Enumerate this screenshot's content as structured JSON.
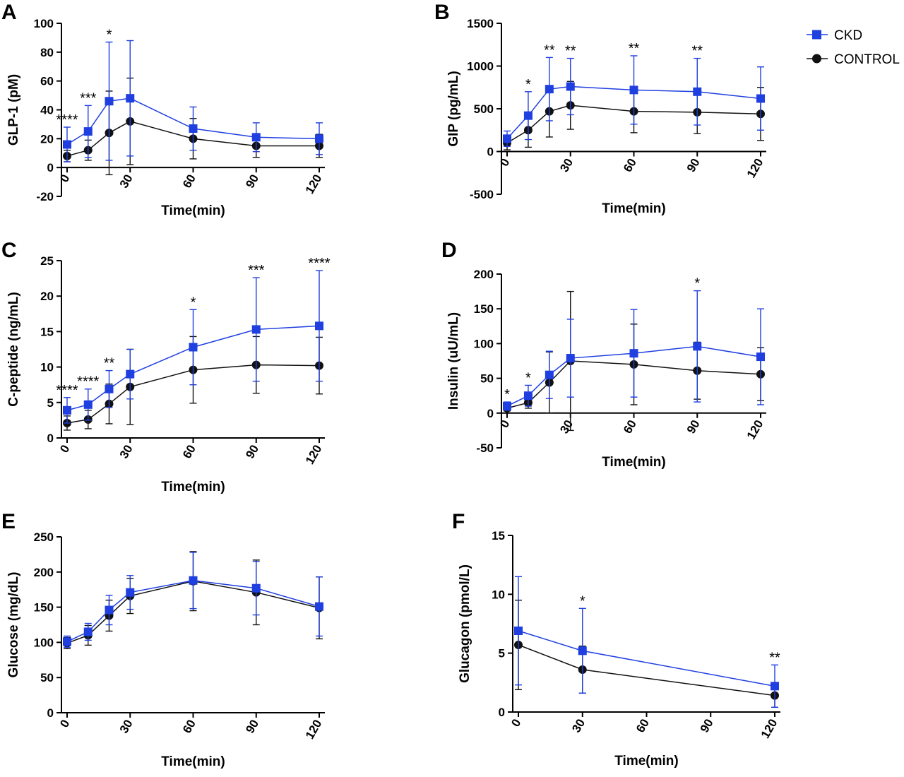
{
  "colors": {
    "CKD": "#1f3fe0",
    "CONTROL": "#111111",
    "axis": "#000000"
  },
  "legend": {
    "items": [
      {
        "label": "CKD",
        "marker": "square"
      },
      {
        "label": "CONTROL",
        "marker": "circle"
      }
    ]
  },
  "chart_data": [
    {
      "panel": "A",
      "type": "line",
      "xlabel": "Time(min)",
      "ylabel": "GLP-1 (pM)",
      "xticks": [
        0,
        30,
        60,
        90,
        120
      ],
      "yticks": [
        -20,
        0,
        20,
        40,
        60,
        80,
        100
      ],
      "xlim": [
        0,
        120
      ],
      "ylim": [
        -20,
        100
      ],
      "series": [
        {
          "name": "CKD",
          "x": [
            0,
            10,
            20,
            30,
            60,
            90,
            120
          ],
          "y": [
            16,
            25,
            46,
            48,
            27,
            21,
            20
          ],
          "err": [
            12,
            18,
            41,
            40,
            15,
            10,
            11
          ]
        },
        {
          "name": "CONTROL",
          "x": [
            0,
            10,
            20,
            30,
            60,
            90,
            120
          ],
          "y": [
            8,
            12,
            24,
            32,
            20,
            15,
            15
          ],
          "err": [
            4,
            7,
            29,
            30,
            14,
            8,
            8
          ]
        }
      ],
      "sig": [
        {
          "x": 0,
          "text": "****"
        },
        {
          "x": 10,
          "text": "***"
        },
        {
          "x": 20,
          "text": "*"
        }
      ]
    },
    {
      "panel": "B",
      "type": "line",
      "xlabel": "Time(min)",
      "ylabel": "GIP (pg/mL)",
      "xticks": [
        0,
        30,
        60,
        90,
        120
      ],
      "yticks": [
        -500,
        0,
        500,
        1000,
        1500
      ],
      "xlim": [
        0,
        120
      ],
      "ylim": [
        -500,
        1500
      ],
      "series": [
        {
          "name": "CKD",
          "x": [
            0,
            10,
            20,
            30,
            60,
            90,
            120
          ],
          "y": [
            150,
            420,
            730,
            760,
            720,
            700,
            620
          ],
          "err": [
            90,
            280,
            370,
            330,
            400,
            390,
            370
          ]
        },
        {
          "name": "CONTROL",
          "x": [
            0,
            10,
            20,
            30,
            60,
            90,
            120
          ],
          "y": [
            100,
            250,
            470,
            540,
            470,
            460,
            440
          ],
          "err": [
            80,
            200,
            300,
            280,
            250,
            250,
            310
          ]
        }
      ],
      "sig": [
        {
          "x": 10,
          "text": "*"
        },
        {
          "x": 20,
          "text": "**"
        },
        {
          "x": 30,
          "text": "**"
        },
        {
          "x": 60,
          "text": "**"
        },
        {
          "x": 90,
          "text": "**"
        }
      ]
    },
    {
      "panel": "C",
      "type": "line",
      "xlabel": "Time(min)",
      "ylabel": "C-peptide (ng/mL)",
      "xticks": [
        0,
        30,
        60,
        90,
        120
      ],
      "yticks": [
        0,
        5,
        10,
        15,
        20,
        25
      ],
      "xlim": [
        0,
        120
      ],
      "ylim": [
        0,
        25
      ],
      "series": [
        {
          "name": "CKD",
          "x": [
            0,
            10,
            20,
            30,
            60,
            90,
            120
          ],
          "y": [
            3.9,
            4.7,
            6.9,
            9.0,
            12.8,
            15.3,
            15.8
          ],
          "err": [
            1.8,
            2.2,
            2.6,
            3.5,
            5.3,
            7.3,
            7.8
          ]
        },
        {
          "name": "CONTROL",
          "x": [
            0,
            10,
            20,
            30,
            60,
            90,
            120
          ],
          "y": [
            2.1,
            2.6,
            4.8,
            7.2,
            9.6,
            10.3,
            10.2
          ],
          "err": [
            1.0,
            1.3,
            2.8,
            5.3,
            4.7,
            4.0,
            4.0
          ]
        }
      ],
      "sig": [
        {
          "x": 0,
          "text": "****"
        },
        {
          "x": 10,
          "text": "****"
        },
        {
          "x": 20,
          "text": "**"
        },
        {
          "x": 60,
          "text": "*"
        },
        {
          "x": 90,
          "text": "***"
        },
        {
          "x": 120,
          "text": "****"
        }
      ]
    },
    {
      "panel": "D",
      "type": "line",
      "xlabel": "Time(min)",
      "ylabel": "Insulin (uU/mL)",
      "xticks": [
        0,
        30,
        60,
        90,
        120
      ],
      "yticks": [
        -50,
        0,
        50,
        100,
        150,
        200
      ],
      "xlim": [
        0,
        120
      ],
      "ylim": [
        -50,
        200
      ],
      "series": [
        {
          "name": "CKD",
          "x": [
            0,
            10,
            20,
            30,
            60,
            90,
            120
          ],
          "y": [
            10,
            25,
            55,
            79,
            86,
            96,
            81
          ],
          "err": [
            6,
            15,
            34,
            56,
            63,
            80,
            69
          ]
        },
        {
          "name": "CONTROL",
          "x": [
            0,
            10,
            20,
            30,
            60,
            90,
            120
          ],
          "y": [
            7,
            15,
            44,
            75,
            70,
            61,
            56
          ],
          "err": [
            4,
            8,
            44,
            100,
            58,
            41,
            38
          ]
        }
      ],
      "sig": [
        {
          "x": 0,
          "text": "*"
        },
        {
          "x": 10,
          "text": "*"
        },
        {
          "x": 90,
          "text": "*"
        }
      ]
    },
    {
      "panel": "E",
      "type": "line",
      "xlabel": "Time(min)",
      "ylabel": "Glucose (mg/dL)",
      "xticks": [
        0,
        30,
        60,
        90,
        120
      ],
      "yticks": [
        0,
        50,
        100,
        150,
        200,
        250
      ],
      "xlim": [
        0,
        120
      ],
      "ylim": [
        0,
        250
      ],
      "series": [
        {
          "name": "CKD",
          "x": [
            0,
            10,
            20,
            30,
            60,
            90,
            120
          ],
          "y": [
            101,
            115,
            146,
            171,
            188,
            177,
            151
          ],
          "err": [
            8,
            12,
            21,
            24,
            40,
            38,
            42
          ]
        },
        {
          "name": "CONTROL",
          "x": [
            0,
            10,
            20,
            30,
            60,
            90,
            120
          ],
          "y": [
            99,
            110,
            138,
            166,
            187,
            171,
            149
          ],
          "err": [
            8,
            14,
            22,
            25,
            42,
            46,
            44
          ]
        }
      ],
      "sig": []
    },
    {
      "panel": "F",
      "type": "line",
      "xlabel": "Time(min)",
      "ylabel": "Glucagon (pmol/L)",
      "xticks": [
        0,
        30,
        60,
        90,
        120
      ],
      "yticks": [
        0,
        5,
        10,
        15
      ],
      "xlim": [
        0,
        120
      ],
      "ylim": [
        0,
        15
      ],
      "series": [
        {
          "name": "CKD",
          "x": [
            0,
            30,
            120
          ],
          "y": [
            6.9,
            5.2,
            2.2
          ],
          "err": [
            4.6,
            3.6,
            1.8
          ]
        },
        {
          "name": "CONTROL",
          "x": [
            0,
            30,
            120
          ],
          "y": [
            5.7,
            3.6,
            1.4
          ],
          "err": [
            3.8,
            2.0,
            1.0
          ]
        }
      ],
      "sig": [
        {
          "x": 30,
          "text": "*"
        },
        {
          "x": 120,
          "text": "**"
        }
      ]
    }
  ]
}
